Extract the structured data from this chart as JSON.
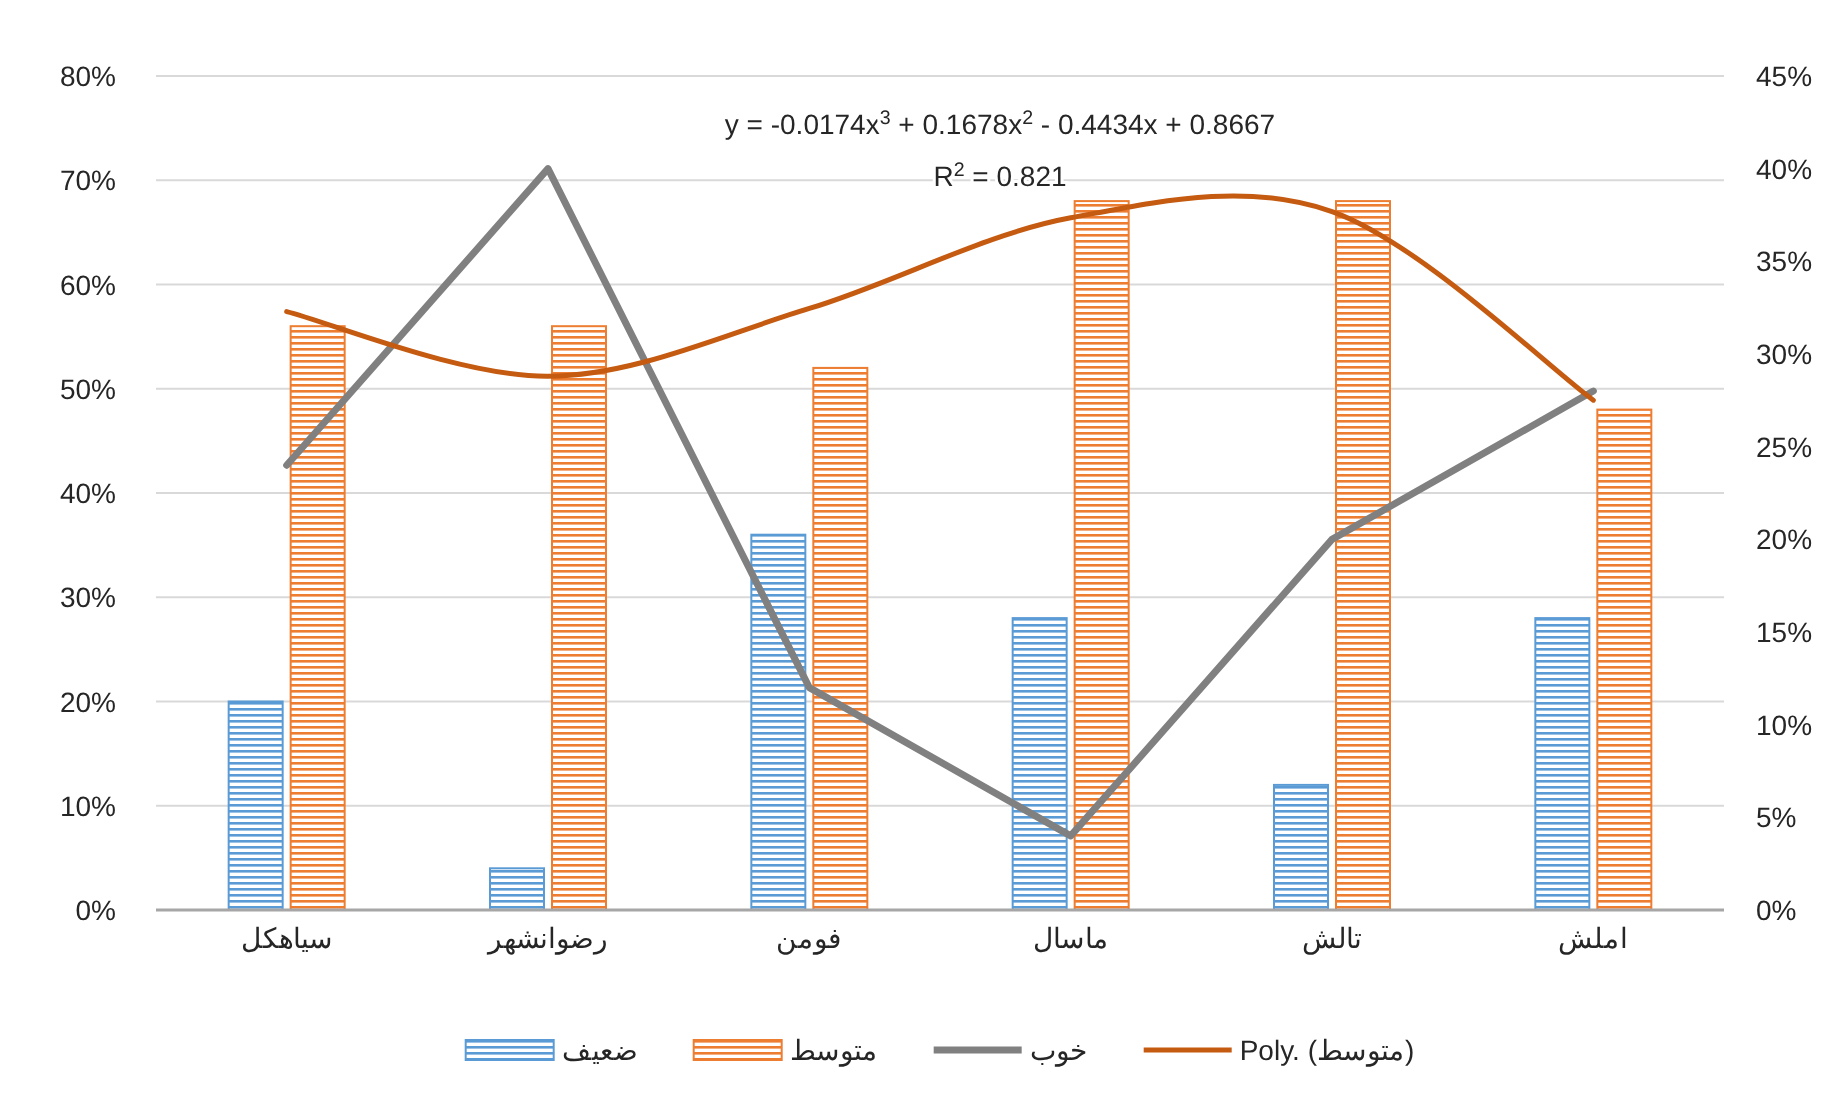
{
  "chart_data": {
    "type": "bar",
    "categories": [
      "سیاهکل",
      "رضوانشهر",
      "فومن",
      "ماسال",
      "تالش",
      "املش"
    ],
    "series": [
      {
        "name": "ضعیف",
        "color": "#5b9bd5",
        "values": [
          20,
          4,
          36,
          28,
          12,
          28
        ]
      },
      {
        "name": "متوسط",
        "color": "#ed7d31",
        "values": [
          56,
          56,
          52,
          68,
          68,
          48
        ]
      },
      {
        "name": "خوب",
        "type": "line",
        "axis": "y2",
        "color": "#808080",
        "values": [
          24,
          40,
          12,
          4,
          20,
          28
        ]
      },
      {
        "name": "Poly. (متوسط)",
        "type": "line",
        "color": "#c55a11",
        "values": [
          57.4,
          51.2,
          57.7,
          66.4,
          67.0,
          48.9
        ]
      }
    ],
    "ylim": [
      0,
      80
    ],
    "yticks": [
      {
        "value": 0,
        "label": "0%"
      },
      {
        "value": 10,
        "label": "10%"
      },
      {
        "value": 20,
        "label": "20%"
      },
      {
        "value": 30,
        "label": "30%"
      },
      {
        "value": 40,
        "label": "40%"
      },
      {
        "value": 50,
        "label": "50%"
      },
      {
        "value": 60,
        "label": "60%"
      },
      {
        "value": 70,
        "label": "70%"
      },
      {
        "value": 80,
        "label": "80%"
      }
    ],
    "y2lim": [
      0,
      45
    ],
    "y2ticks": [
      {
        "value": 0,
        "label": "0%"
      },
      {
        "value": 5,
        "label": "5%"
      },
      {
        "value": 10,
        "label": "10%"
      },
      {
        "value": 15,
        "label": "15%"
      },
      {
        "value": 20,
        "label": "20%"
      },
      {
        "value": 25,
        "label": "25%"
      },
      {
        "value": 30,
        "label": "30%"
      },
      {
        "value": 35,
        "label": "35%"
      },
      {
        "value": 40,
        "label": "40%"
      },
      {
        "value": 45,
        "label": "45%"
      }
    ],
    "annotations": [
      "y = -0.0174x$^{3}$ + 0.1678x$^{2}$ - 0.4434x + 0.8667",
      "R$^{2}$ = 0.821"
    ],
    "grid": "y",
    "legend": "bottom",
    "marker": "none"
  }
}
